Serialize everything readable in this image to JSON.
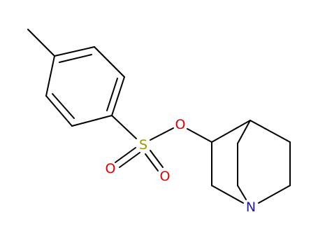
{
  "atoms": [
    {
      "label": "S"
    },
    {
      "label": "O"
    },
    {
      "label": "O"
    },
    {
      "label": "O"
    },
    {
      "label": "N"
    }
  ]
}
